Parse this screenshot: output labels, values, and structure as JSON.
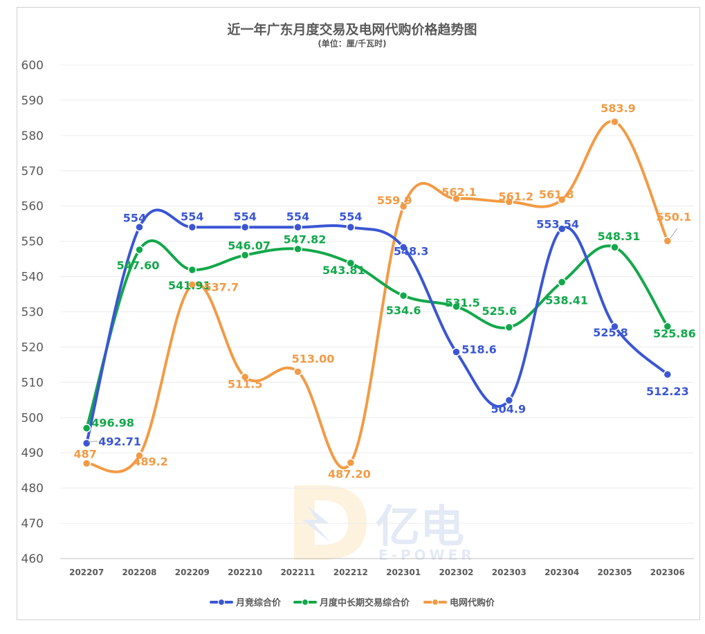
{
  "chart_data": {
    "type": "line",
    "title": "近一年广东月度交易及电网代购价格趋势图",
    "subtitle": "(单位：厘/千瓦时)",
    "ylim": [
      460,
      600
    ],
    "yticks": [
      460,
      470,
      480,
      490,
      500,
      510,
      520,
      530,
      540,
      550,
      560,
      570,
      580,
      590,
      600
    ],
    "categories": [
      "202207",
      "202208",
      "202209",
      "202210",
      "202211",
      "202212",
      "202301",
      "202302",
      "202303",
      "202304",
      "202305",
      "202306"
    ],
    "grid": true,
    "legend_position": "bottom",
    "series": [
      {
        "name": "月竞综合价",
        "color": "#3a56d4",
        "values": [
          492.71,
          554,
          554,
          554,
          554,
          554,
          548.3,
          518.6,
          504.9,
          553.54,
          525.8,
          512.23
        ],
        "labels": [
          "492.71",
          "554",
          "554",
          "554",
          "554",
          "554",
          "548.3",
          "518.6",
          "504.9",
          "553.54",
          "525.8",
          "512.23"
        ]
      },
      {
        "name": "月度中长期交易综合价",
        "color": "#12a84a",
        "values": [
          496.98,
          547.6,
          541.91,
          546.07,
          547.82,
          543.81,
          534.6,
          531.5,
          525.6,
          538.41,
          548.31,
          525.86
        ],
        "labels": [
          "496.98",
          "547.60",
          "541.91",
          "546.07",
          "547.82",
          "543.81",
          "534.6",
          "531.5",
          "525.6",
          "538.41",
          "548.31",
          "525.86"
        ]
      },
      {
        "name": "电网代购价",
        "color": "#f39a44",
        "values": [
          487,
          489.2,
          537.7,
          511.5,
          513.0,
          487.2,
          559.9,
          562.1,
          561.2,
          561.8,
          583.9,
          550.1
        ],
        "labels": [
          "487",
          "489.2",
          "537.7",
          "511.5",
          "513.00",
          "487.20",
          "559.9",
          "562.1",
          "561.2",
          "561.8",
          "583.9",
          "550.1"
        ]
      }
    ]
  },
  "watermark": {
    "brand": "亿电",
    "brand_latin": "E-POWER"
  }
}
